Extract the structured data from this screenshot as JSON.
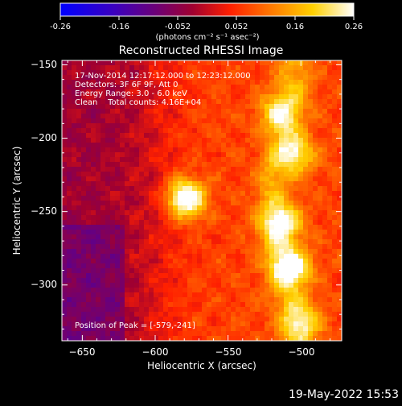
{
  "colorbar": {
    "tick_labels": [
      "-0.26",
      "-0.16",
      "-0.052",
      "0.052",
      "0.16",
      "0.26"
    ],
    "range": [
      -0.26,
      0.26
    ],
    "unit_label": "(photons cm⁻² s⁻¹ asec⁻²)"
  },
  "header": {
    "title": "Reconstructed RHESSI Image"
  },
  "annotations": {
    "line1": "17-Nov-2014 12:17:12.000 to 12:23:12.000",
    "line2": "Detectors: 3F 6F 9F, Att 0",
    "line3": "Energy Range: 3.0 - 6.0 keV",
    "line4": "Clean    Total counts: 4.16E+04",
    "peak": "Position of Peak = [-579,-241]"
  },
  "footer": {
    "timestamp": "19-May-2022 15:53"
  },
  "colors": {
    "background": "#000000",
    "text": "#ffffff"
  },
  "chart_data": {
    "type": "heatmap",
    "title": "Reconstructed RHESSI Image",
    "xlabel": "Heliocentric X (arcsec)",
    "ylabel": "Heliocentric Y (arcsec)",
    "xlim": [
      -664,
      -472
    ],
    "ylim": [
      -338,
      -147
    ],
    "x_ticks": [
      -650,
      -600,
      -550,
      -500
    ],
    "y_ticks": [
      -150,
      -200,
      -250,
      -300
    ],
    "colormap": "heat (blue-violet-red-yellow-white)",
    "value_range": [
      -0.26,
      0.26
    ],
    "peak_position": [
      -579,
      -241
    ],
    "sources": [
      {
        "x": -579,
        "y": -241,
        "peak": 0.26
      },
      {
        "x": -506,
        "y": -288,
        "peak": 0.2
      },
      {
        "x": -512,
        "y": -258,
        "peak": 0.17
      },
      {
        "x": -503,
        "y": -211,
        "peak": 0.15
      },
      {
        "x": -516,
        "y": -182,
        "peak": 0.13
      },
      {
        "x": -498,
        "y": -325,
        "peak": 0.12
      }
    ]
  }
}
